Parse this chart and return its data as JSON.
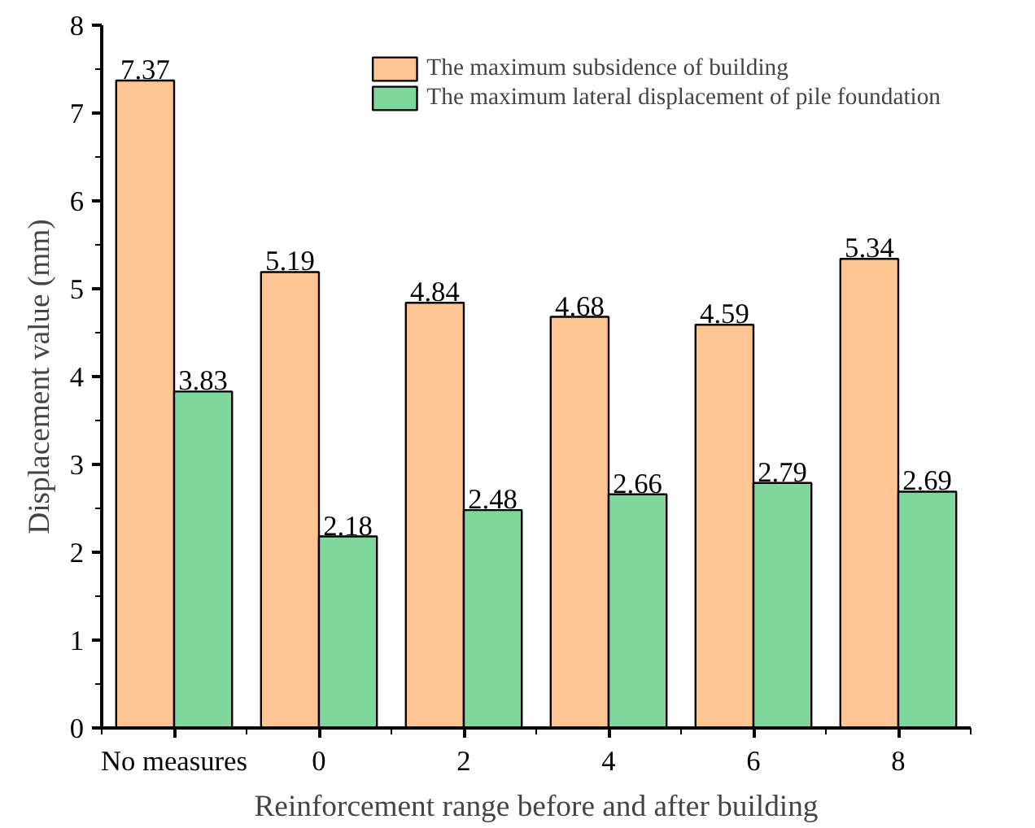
{
  "chart_data": {
    "type": "bar",
    "xlabel": "Reinforcement range before and after building",
    "ylabel": "Displacement value (mm)",
    "categories": [
      "No measures",
      "0",
      "2",
      "4",
      "6",
      "8"
    ],
    "series": [
      {
        "name": "The maximum subsidence of building",
        "color": "#fdc594",
        "values": [
          7.37,
          5.19,
          4.84,
          4.68,
          4.59,
          5.34
        ]
      },
      {
        "name": "The maximum lateral displacement of pile foundation",
        "color": "#7fd89b",
        "values": [
          3.83,
          2.18,
          2.48,
          2.66,
          2.79,
          2.69
        ]
      }
    ],
    "ylim": [
      0,
      8
    ],
    "yticks": [
      0,
      1,
      2,
      3,
      4,
      5,
      6,
      7,
      8
    ],
    "grid": false,
    "legend": "top right",
    "data_labels": true
  }
}
